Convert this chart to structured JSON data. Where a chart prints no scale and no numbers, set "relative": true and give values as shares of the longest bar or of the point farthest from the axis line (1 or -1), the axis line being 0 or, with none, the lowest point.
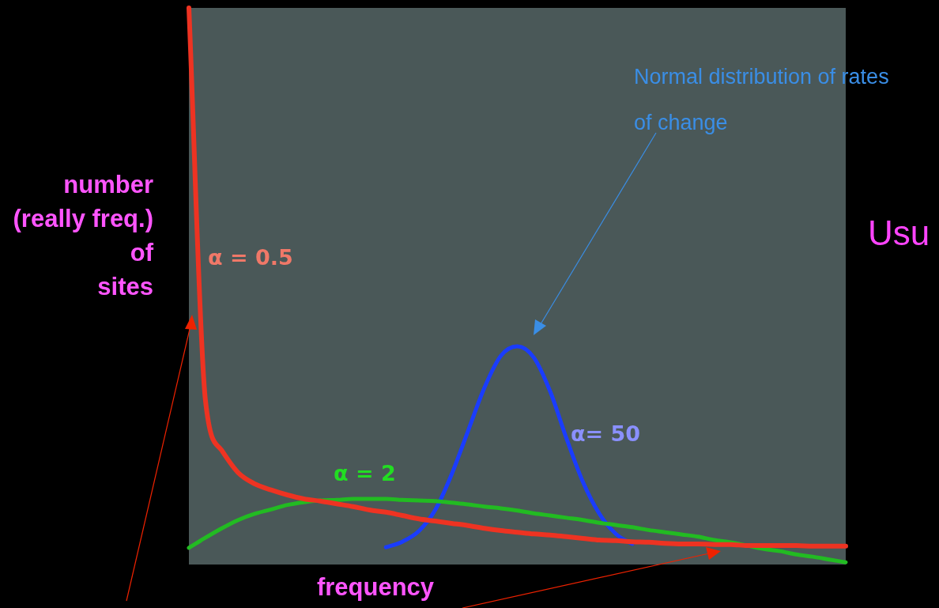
{
  "chart_data": {
    "type": "line",
    "relative": true,
    "xlabel": "frequency",
    "ylabel": "number\n(really freq.)\nof\nsites",
    "grid": false,
    "legend": false,
    "marker": "none",
    "categories": [
      null,
      null,
      null,
      null,
      null,
      null,
      null,
      null,
      null,
      null,
      null,
      null,
      null,
      null,
      null,
      null,
      null,
      null,
      null,
      null,
      null,
      null,
      null,
      null,
      null,
      null,
      null,
      null,
      null,
      null,
      null,
      null,
      null,
      null,
      null,
      null,
      null,
      null,
      null,
      null,
      null
    ],
    "series": [
      {
        "name": "α = 0.5",
        "color": "#ee3322",
        "values": [
          1.0,
          0.297,
          0.205,
          0.165,
          0.145,
          0.134,
          0.125,
          0.118,
          0.114,
          0.109,
          0.104,
          0.098,
          0.094,
          0.088,
          0.082,
          0.078,
          0.074,
          0.07,
          0.065,
          0.061,
          0.058,
          0.055,
          0.053,
          0.05,
          0.047,
          0.044,
          0.043,
          0.041,
          0.04,
          0.038,
          0.037,
          0.037,
          0.036,
          0.036,
          0.034,
          0.034,
          0.034,
          0.034,
          0.033,
          0.033,
          0.033
        ]
      },
      {
        "name": "α = 2",
        "color": "#22bb22",
        "values": [
          0.03,
          0.048,
          0.065,
          0.08,
          0.091,
          0.099,
          0.107,
          0.112,
          0.115,
          0.116,
          0.118,
          0.118,
          0.118,
          0.116,
          0.115,
          0.114,
          0.111,
          0.108,
          0.104,
          0.101,
          0.097,
          0.092,
          0.088,
          0.084,
          0.08,
          0.075,
          0.071,
          0.067,
          0.062,
          0.058,
          0.054,
          0.05,
          0.044,
          0.04,
          0.034,
          0.028,
          0.024,
          0.018,
          0.014,
          0.009,
          0.004
        ]
      },
      {
        "name": "α= 50",
        "color": "#1a3cff",
        "values": [
          null,
          null,
          null,
          null,
          null,
          null,
          null,
          null,
          null,
          null,
          null,
          null,
          0.031,
          0.041,
          0.06,
          0.098,
          0.162,
          0.24,
          0.318,
          0.375,
          0.392,
          0.372,
          0.311,
          0.226,
          0.148,
          0.091,
          0.055,
          0.037,
          null,
          null,
          null,
          null,
          null,
          null,
          null,
          null,
          null,
          null,
          null,
          null,
          null
        ]
      }
    ],
    "annotations": [
      "Normal distribution of rates\nof change",
      "Usu"
    ]
  }
}
